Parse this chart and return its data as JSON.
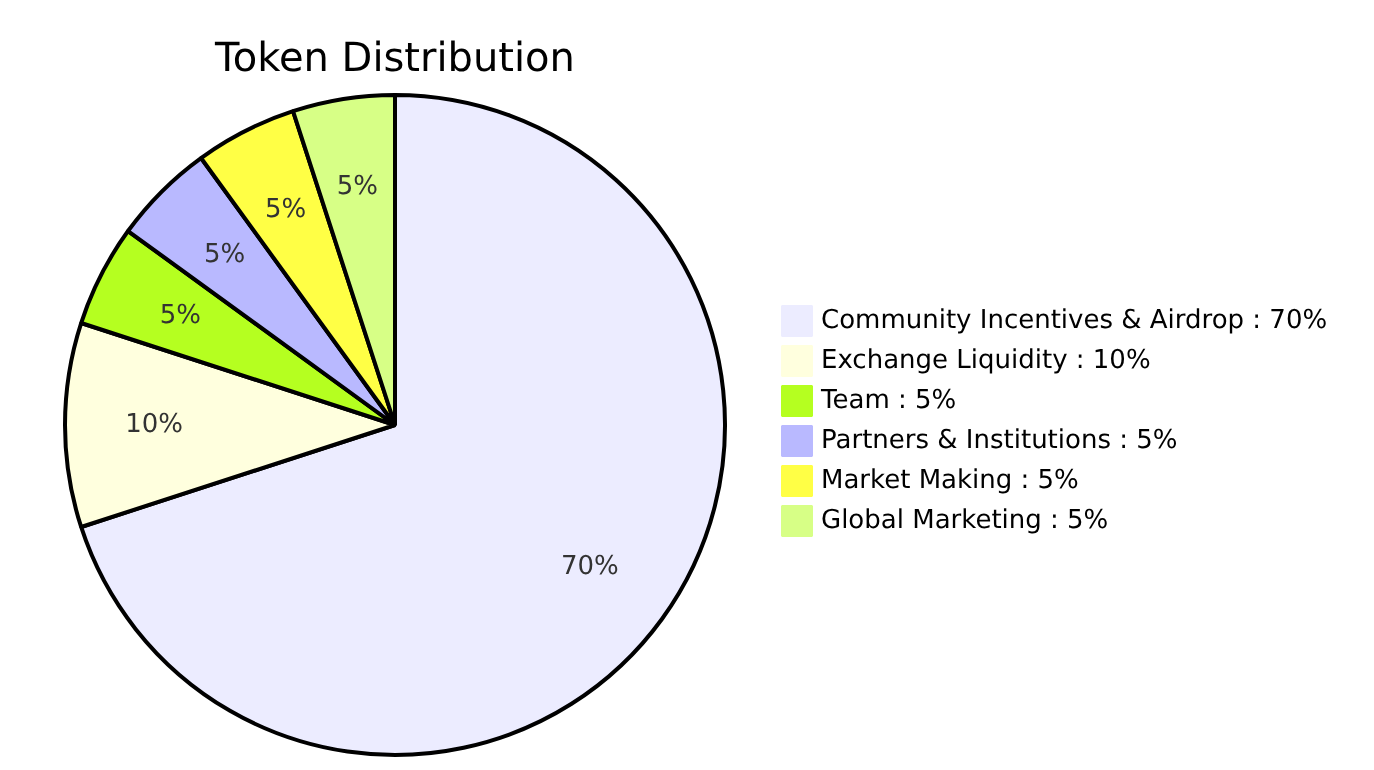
{
  "chart_data": {
    "type": "pie",
    "title": "Token Distribution",
    "categories": [
      "Community Incentives & Airdrop",
      "Exchange Liquidity",
      "Team",
      "Partners & Institutions",
      "Market Making",
      "Global Marketing"
    ],
    "values": [
      70,
      10,
      5,
      5,
      5,
      5
    ],
    "value_labels": [
      "70%",
      "10%",
      "5%",
      "5%",
      "5%",
      "5%"
    ],
    "colors": [
      "#ececff",
      "#ffffde",
      "#b5ff20",
      "#b9b9ff",
      "#ffff45",
      "#d7ff86"
    ],
    "legend": "right"
  }
}
